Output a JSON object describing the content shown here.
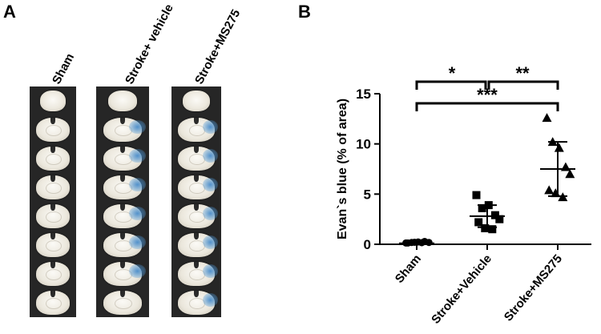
{
  "panel_a": {
    "letter": "A",
    "columns": [
      {
        "label": "Sham",
        "stained_slices": []
      },
      {
        "label": "Stroke+ vehicle",
        "stained_slices": [
          1,
          2,
          3,
          4,
          5,
          6
        ]
      },
      {
        "label": "Stroke+MS275",
        "stained_slices": [
          1,
          2,
          3,
          4,
          5,
          6,
          7
        ]
      }
    ],
    "slice_count": 8,
    "colors": {
      "strip": "#262626",
      "tissue": "#ebe7dc",
      "stain": "#3782c8"
    }
  },
  "panel_b": {
    "letter": "B"
  },
  "chart_data": {
    "type": "scatter",
    "title": "",
    "xlabel": "",
    "ylabel": "Evan`s blue (% of area)",
    "categories": [
      "Sham",
      "Stroke+Vehicle",
      "Stroke+MS275"
    ],
    "ylim": [
      0,
      15
    ],
    "yticks": [
      0,
      5,
      10,
      15
    ],
    "groups": [
      {
        "category": "Sham",
        "marker": "circle",
        "values": [
          0.05,
          0.1,
          0.15,
          0.2,
          0.1,
          0.05,
          0.12,
          0.08
        ],
        "mean": 0.1,
        "sd": 0.06
      },
      {
        "category": "Stroke+Vehicle",
        "marker": "square",
        "values": [
          4.9,
          3.6,
          3.9,
          2.9,
          2.5,
          2.2,
          1.6,
          1.5
        ],
        "mean": 2.8,
        "sd": 1.1
      },
      {
        "category": "Stroke+MS275",
        "marker": "triangle",
        "values": [
          12.6,
          10.2,
          9.6,
          7.7,
          7.0,
          5.4,
          5.1,
          4.7
        ],
        "mean": 7.5,
        "sd": 2.7
      }
    ],
    "significance": [
      {
        "label": "*",
        "from": "Sham",
        "to": "Stroke+Vehicle"
      },
      {
        "label": "**",
        "from": "Stroke+Vehicle",
        "to": "Stroke+MS275"
      },
      {
        "label": "***",
        "from": "Sham",
        "to": "Stroke+MS275"
      }
    ],
    "grid": false,
    "legend": "none"
  }
}
